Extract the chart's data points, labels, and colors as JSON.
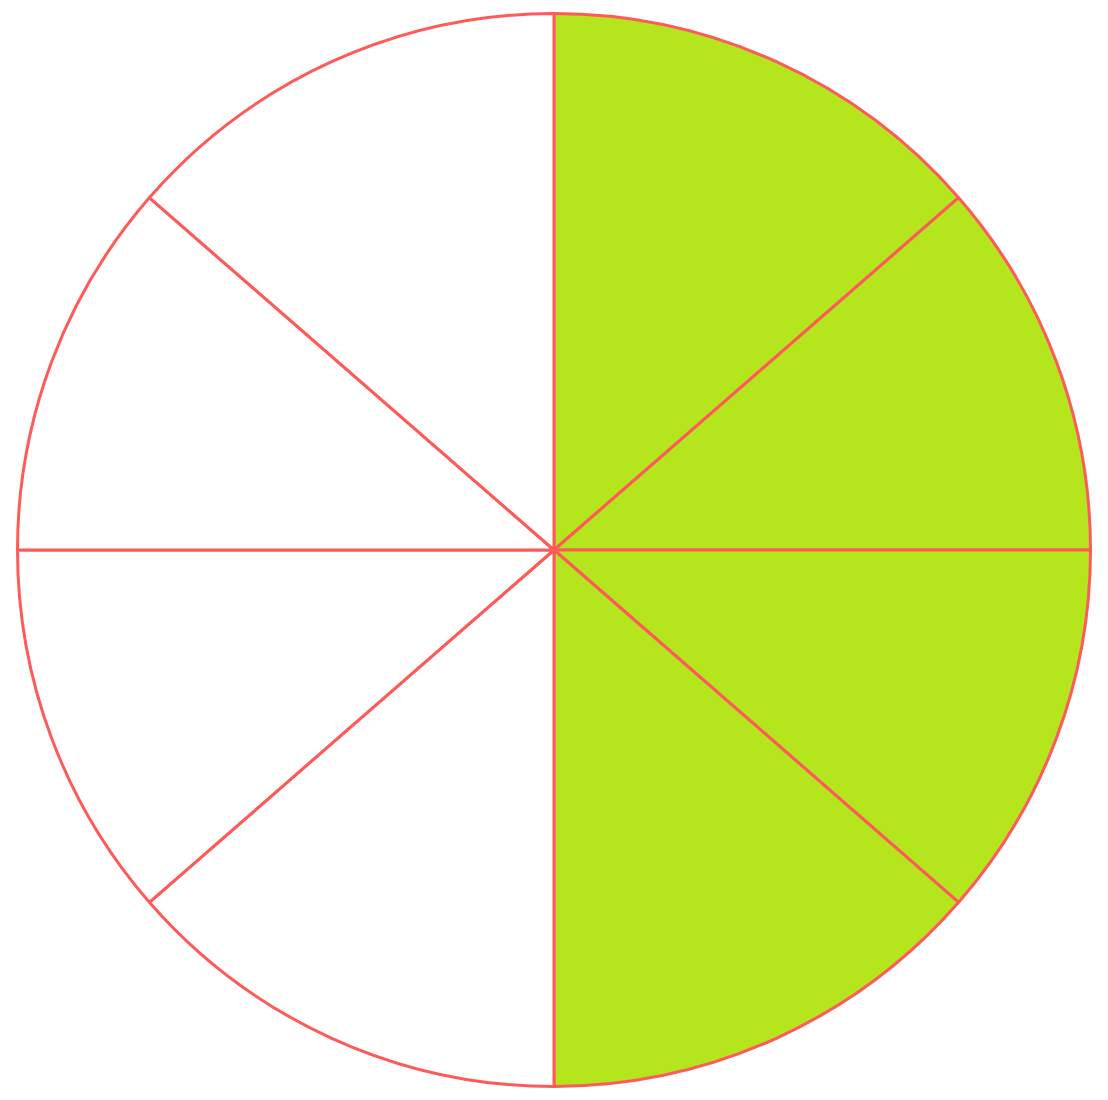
{
  "chart_data": {
    "type": "pie",
    "categories": [
      null,
      null,
      null,
      null,
      null,
      null,
      null,
      null
    ],
    "values": [
      13.6,
      11.4,
      11.4,
      13.6,
      13.6,
      11.4,
      11.4,
      13.6
    ],
    "colors": [
      "#b5e61d",
      "#b5e61d",
      "#b5e61d",
      "#b5e61d",
      "#ffffff",
      "#ffffff",
      "#ffffff",
      "#ffffff"
    ],
    "legend": false
  }
}
